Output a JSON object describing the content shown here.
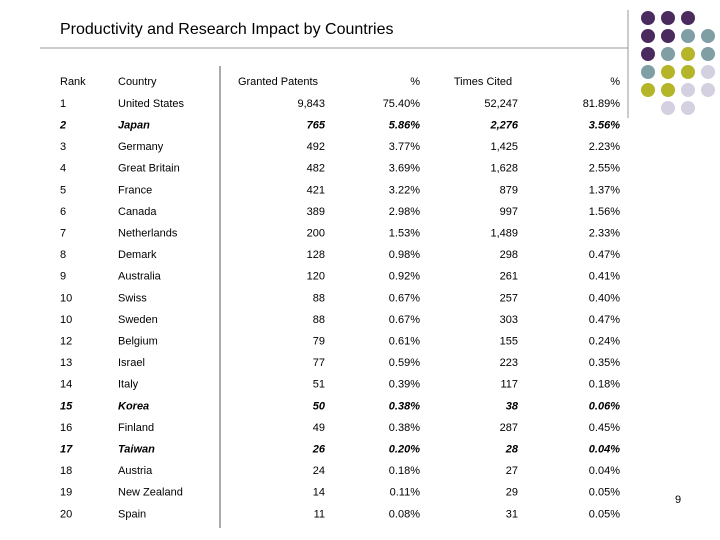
{
  "title": "Productivity and Research Impact by Countries",
  "page_number": "9",
  "table": {
    "header": [
      "Rank",
      "Country",
      "Granted Patents",
      "%",
      "Times Cited",
      "%"
    ],
    "rows": [
      [
        "1",
        "United States",
        "9,843",
        "75.40%",
        "52,247",
        "81.89%"
      ],
      [
        "2",
        "Japan",
        "765",
        "5.86%",
        "2,276",
        "3.56%"
      ],
      [
        "3",
        "Germany",
        "492",
        "3.77%",
        "1,425",
        "2.23%"
      ],
      [
        "4",
        "Great Britain",
        "482",
        "3.69%",
        "1,628",
        "2.55%"
      ],
      [
        "5",
        "France",
        "421",
        "3.22%",
        "879",
        "1.37%"
      ],
      [
        "6",
        "Canada",
        "389",
        "2.98%",
        "997",
        "1.56%"
      ],
      [
        "7",
        "Netherlands",
        "200",
        "1.53%",
        "1,489",
        "2.33%"
      ],
      [
        "8",
        "Demark",
        "128",
        "0.98%",
        "298",
        "0.47%"
      ],
      [
        "9",
        "Australia",
        "120",
        "0.92%",
        "261",
        "0.41%"
      ],
      [
        "10",
        "Swiss",
        "88",
        "0.67%",
        "257",
        "0.40%"
      ],
      [
        "10",
        "Sweden",
        "88",
        "0.67%",
        "303",
        "0.47%"
      ],
      [
        "12",
        "Belgium",
        "79",
        "0.61%",
        "155",
        "0.24%"
      ],
      [
        "13",
        "Israel",
        "77",
        "0.59%",
        "223",
        "0.35%"
      ],
      [
        "14",
        "Italy",
        "51",
        "0.39%",
        "117",
        "0.18%"
      ],
      [
        "15",
        "Korea",
        "50",
        "0.38%",
        "38",
        "0.06%"
      ],
      [
        "16",
        "Finland",
        "49",
        "0.38%",
        "287",
        "0.45%"
      ],
      [
        "17",
        "Taiwan",
        "26",
        "0.20%",
        "28",
        "0.04%"
      ],
      [
        "18",
        "Austria",
        "24",
        "0.18%",
        "27",
        "0.04%"
      ],
      [
        "19",
        "New Zealand",
        "14",
        "0.11%",
        "29",
        "0.05%"
      ],
      [
        "20",
        "Spain",
        "11",
        "0.08%",
        "31",
        "0.05%"
      ]
    ]
  }
}
